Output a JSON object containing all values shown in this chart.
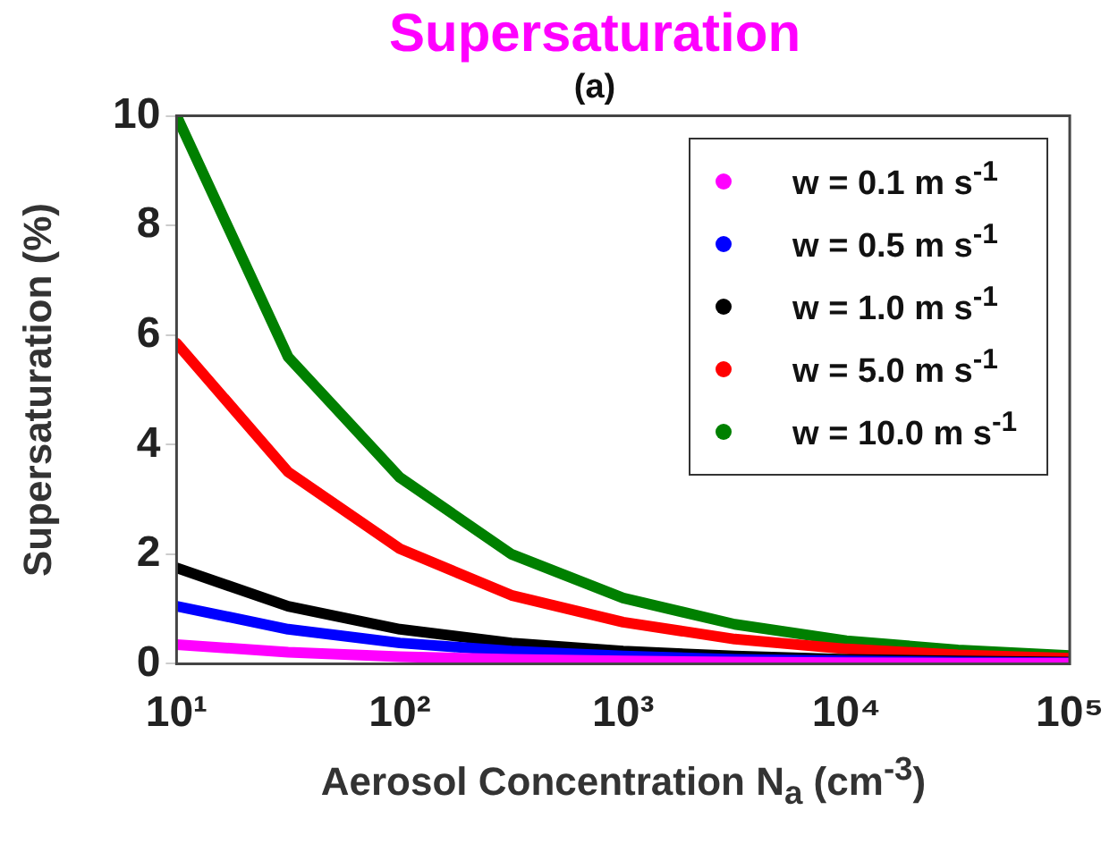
{
  "chart_data": {
    "type": "line",
    "title": "Supersaturation",
    "subtitle": "(a)",
    "xlabel": "Aerosol Concentration N$_{a}$ (cm$^{-3}$)",
    "ylabel": "Supersaturation (%)",
    "x": [
      10,
      31.6,
      100,
      316,
      1000,
      3162,
      10000,
      31623,
      100000
    ],
    "series": [
      {
        "name": "w = 0.1 m s$^{-1}$",
        "color": "#ff00ff",
        "values": [
          0.35,
          0.21,
          0.13,
          0.08,
          0.05,
          0.03,
          0.02,
          0.01,
          0.01
        ]
      },
      {
        "name": "w = 0.5 m s$^{-1}$",
        "color": "#0000ff",
        "values": [
          1.05,
          0.63,
          0.38,
          0.23,
          0.14,
          0.08,
          0.05,
          0.03,
          0.02
        ]
      },
      {
        "name": "w = 1.0 m s$^{-1}$",
        "color": "#000000",
        "values": [
          1.75,
          1.05,
          0.63,
          0.38,
          0.23,
          0.14,
          0.08,
          0.05,
          0.03
        ]
      },
      {
        "name": "w = 5.0 m s$^{-1}$",
        "color": "#ff0000",
        "values": [
          5.85,
          3.5,
          2.1,
          1.25,
          0.76,
          0.45,
          0.27,
          0.16,
          0.1
        ]
      },
      {
        "name": "w = 10.0 m s$^{-1}$",
        "color": "#008000",
        "values": [
          10,
          5.6,
          3.4,
          2.0,
          1.2,
          0.72,
          0.42,
          0.25,
          0.15
        ]
      }
    ],
    "log": "x",
    "xlim": [
      10,
      100000
    ],
    "xticks": [
      {
        "value": 10,
        "label": "10¹"
      },
      {
        "value": 100,
        "label": "10²"
      },
      {
        "value": 1000,
        "label": "10³"
      },
      {
        "value": 10000,
        "label": "10⁴"
      },
      {
        "value": 100000,
        "label": "10⁵"
      }
    ],
    "ylim": [
      0,
      10
    ],
    "yticks": [
      0,
      2,
      4,
      6,
      8,
      10
    ],
    "grid": false,
    "legend": "top right",
    "line_style": "solid"
  }
}
